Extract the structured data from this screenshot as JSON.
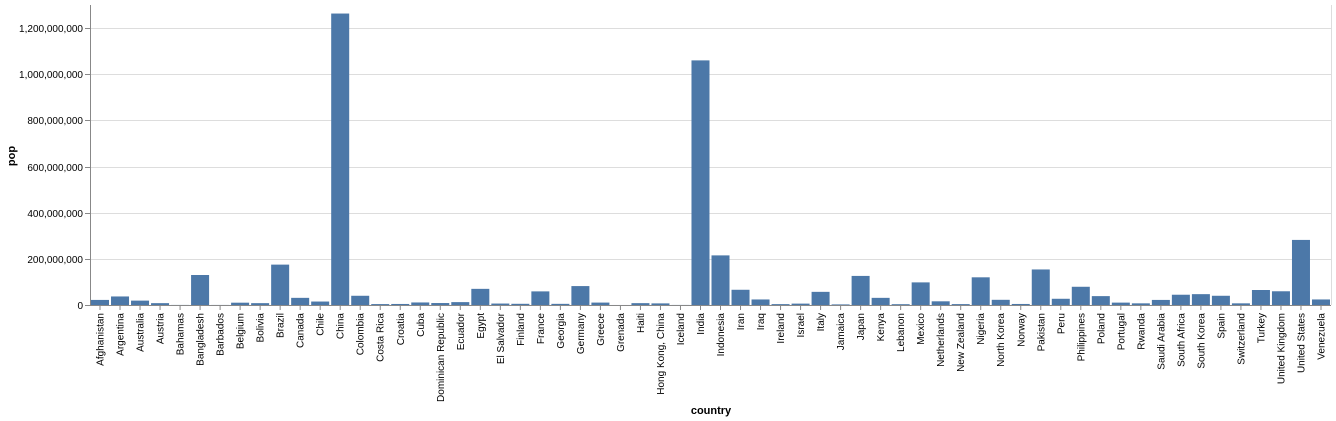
{
  "chart_data": {
    "type": "bar",
    "xlabel": "country",
    "ylabel": "pop",
    "ylim": [
      0,
      1300000000
    ],
    "y_ticks": [
      0,
      200000000,
      400000000,
      600000000,
      800000000,
      1000000000,
      1200000000
    ],
    "y_tick_labels": [
      "0",
      "200,000,000",
      "400,000,000",
      "600,000,000",
      "800,000,000",
      "1,000,000,000",
      "1,200,000,000"
    ],
    "grid": true,
    "bar_color": "#4c78a8",
    "categories": [
      "Afghanistan",
      "Argentina",
      "Australia",
      "Austria",
      "Bahamas",
      "Bangladesh",
      "Barbados",
      "Belgium",
      "Bolivia",
      "Brazil",
      "Canada",
      "Chile",
      "China",
      "Colombia",
      "Costa Rica",
      "Croatia",
      "Cuba",
      "Dominican Republic",
      "Ecuador",
      "Egypt",
      "El Salvador",
      "Finland",
      "France",
      "Georgia",
      "Germany",
      "Greece",
      "Grenada",
      "Haiti",
      "Hong Kong, China",
      "Iceland",
      "India",
      "Indonesia",
      "Iran",
      "Iraq",
      "Ireland",
      "Israel",
      "Italy",
      "Jamaica",
      "Japan",
      "Kenya",
      "Lebanon",
      "Mexico",
      "Netherlands",
      "New Zealand",
      "Nigeria",
      "North Korea",
      "Norway",
      "Pakistan",
      "Peru",
      "Philippines",
      "Poland",
      "Portugal",
      "Rwanda",
      "Saudi Arabia",
      "South Africa",
      "South Korea",
      "Spain",
      "Switzerland",
      "Turkey",
      "United Kingdom",
      "United States",
      "Venezuela"
    ],
    "values": [
      22000000,
      37000000,
      19000000,
      8000000,
      300000,
      130000000,
      270000,
      10000000,
      8000000,
      175000000,
      31000000,
      15000000,
      1263000000,
      40000000,
      4000000,
      4500000,
      11000000,
      8500000,
      12500000,
      70000000,
      6300000,
      5200000,
      59000000,
      5000000,
      82000000,
      10500000,
      100000,
      8000000,
      7000000,
      280000,
      1060000000,
      215000000,
      66000000,
      24000000,
      3800000,
      6000000,
      57000000,
      2600000,
      126000000,
      31000000,
      3500000,
      98000000,
      16000000,
      3900000,
      120000000,
      22500000,
      4500000,
      154000000,
      27000000,
      79000000,
      38500000,
      10300000,
      7200000,
      22000000,
      44500000,
      47000000,
      40000000,
      7200000,
      65000000,
      59500000,
      282000000,
      24000000
    ]
  }
}
